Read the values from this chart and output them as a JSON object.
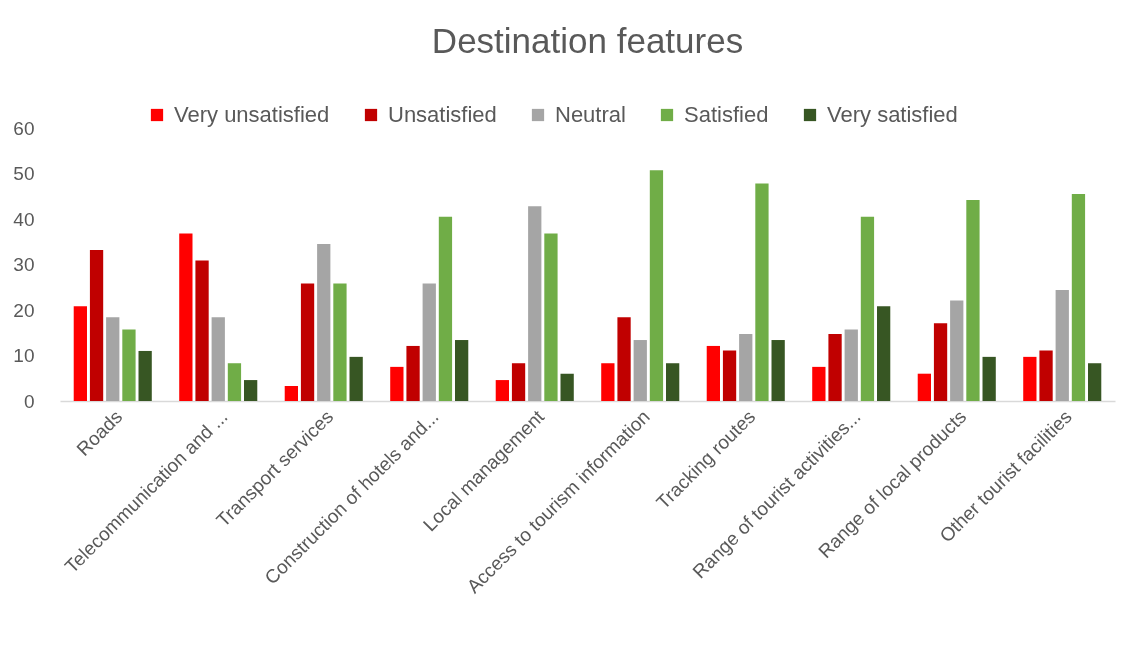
{
  "chart_data": {
    "type": "bar",
    "title": "Destination features",
    "categories": [
      "Roads",
      "Telecommunication and ...",
      "Transport services",
      "Construction of hotels and...",
      "Local management",
      "Access to tourism information",
      "Tracking routes",
      "Range of tourist activities...",
      "Range of local products",
      "Other tourist facilities"
    ],
    "series": [
      {
        "name": "Very unsatisfied",
        "color": "#ff0000",
        "values": [
          20.8,
          36.8,
          3.3,
          7.5,
          4.6,
          8.3,
          12.1,
          7.5,
          6.0,
          9.7
        ]
      },
      {
        "name": "Unsatisfied",
        "color": "#c00000",
        "values": [
          33.2,
          30.9,
          25.8,
          12.1,
          8.3,
          18.4,
          11.1,
          14.7,
          17.1,
          11.1
        ]
      },
      {
        "name": "Neutral",
        "color": "#a5a5a5",
        "values": [
          18.4,
          18.4,
          34.5,
          25.8,
          42.8,
          13.4,
          14.7,
          15.7,
          22.1,
          24.4
        ]
      },
      {
        "name": "Satisfied",
        "color": "#70ad47",
        "values": [
          15.7,
          8.3,
          25.8,
          40.5,
          36.8,
          50.7,
          47.8,
          40.5,
          44.2,
          45.5
        ]
      },
      {
        "name": "Very satisfied",
        "color": "#375623",
        "values": [
          11.0,
          4.6,
          9.7,
          13.4,
          6.0,
          8.3,
          13.4,
          20.8,
          9.7,
          8.3
        ]
      }
    ],
    "ylim": [
      0,
      60
    ],
    "yticks": [
      0,
      10,
      20,
      30,
      40,
      50,
      60
    ],
    "legend": "top"
  }
}
